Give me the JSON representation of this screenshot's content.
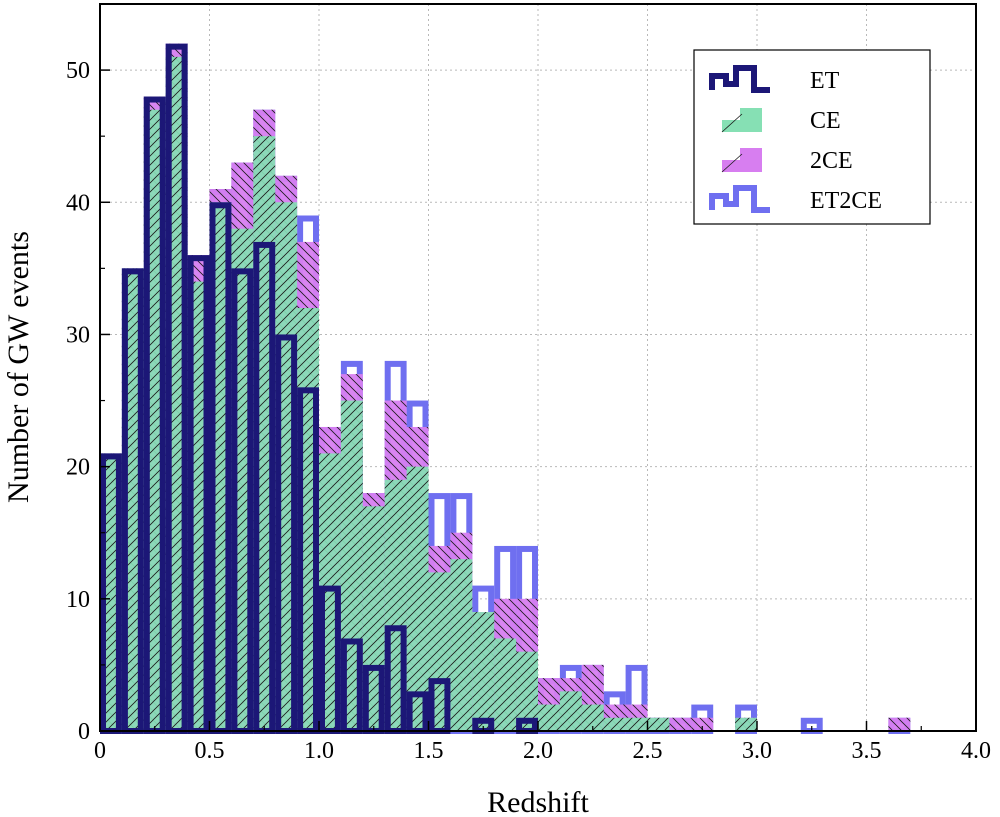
{
  "chart_data": {
    "type": "bar",
    "xlabel": "Redshift",
    "ylabel": "Number of GW events",
    "xlim": [
      0,
      4.0
    ],
    "ylim": [
      0,
      55
    ],
    "x_ticks": [
      "0",
      "0.5",
      "1.0",
      "1.5",
      "2.0",
      "2.5",
      "3.0",
      "3.5",
      "4.0"
    ],
    "y_ticks": [
      "0",
      "10",
      "20",
      "30",
      "40",
      "50"
    ],
    "grid": true,
    "legend_position": "top-right",
    "bin_width": 0.1,
    "bin_starts": [
      0.0,
      0.1,
      0.2,
      0.3,
      0.4,
      0.5,
      0.6,
      0.7,
      0.8,
      0.9,
      1.0,
      1.1,
      1.2,
      1.3,
      1.4,
      1.5,
      1.6,
      1.7,
      1.8,
      1.9,
      2.0,
      2.1,
      2.2,
      2.3,
      2.4,
      2.5,
      2.6,
      2.7,
      2.8,
      2.9,
      3.0,
      3.1,
      3.2,
      3.3,
      3.4,
      3.5,
      3.6,
      3.7,
      3.8,
      3.9
    ],
    "series": [
      {
        "name": "ET2CE",
        "color": "#6f6ff0",
        "style": "outline",
        "values": [
          21,
          35,
          48,
          52,
          36,
          41,
          43,
          47,
          42,
          39,
          23,
          28,
          18,
          28,
          25,
          18,
          18,
          11,
          14,
          14,
          4,
          5,
          5,
          3,
          5,
          1,
          1,
          2,
          0,
          2,
          0,
          0,
          1,
          0,
          0,
          0,
          1,
          0,
          0,
          0
        ]
      },
      {
        "name": "2CE",
        "color": "#d77ef0",
        "style": "hatched-fill",
        "values": [
          21,
          35,
          48,
          52,
          36,
          41,
          43,
          47,
          42,
          37,
          23,
          27,
          18,
          25,
          23,
          14,
          15,
          9,
          10,
          10,
          4,
          4,
          5,
          2,
          2,
          1,
          1,
          1,
          0,
          1,
          0,
          0,
          0,
          0,
          0,
          0,
          1,
          0,
          0,
          0
        ]
      },
      {
        "name": "CE",
        "color": "#86e0b4",
        "style": "hatched-fill",
        "values": [
          21,
          35,
          47,
          51,
          34,
          40,
          38,
          45,
          40,
          32,
          21,
          25,
          17,
          19,
          20,
          12,
          13,
          9,
          7,
          6,
          2,
          3,
          2,
          1,
          1,
          1,
          0,
          0,
          0,
          1,
          0,
          0,
          0,
          0,
          0,
          0,
          0,
          0,
          0,
          0
        ]
      },
      {
        "name": "ET",
        "color": "#1c1777",
        "style": "outline",
        "values": [
          21,
          35,
          48,
          52,
          36,
          40,
          35,
          37,
          30,
          26,
          11,
          7,
          5,
          8,
          3,
          4,
          0,
          1,
          0,
          1,
          0,
          0,
          0,
          0,
          0,
          0,
          0,
          0,
          0,
          0,
          0,
          0,
          0,
          0,
          0,
          0,
          0,
          0,
          0,
          0
        ]
      }
    ],
    "legend": [
      {
        "name": "ET",
        "color": "#1c1777",
        "style": "outline"
      },
      {
        "name": "CE",
        "color": "#86e0b4",
        "style": "hatched-fill"
      },
      {
        "name": "2CE",
        "color": "#d77ef0",
        "style": "hatched-fill"
      },
      {
        "name": "ET2CE",
        "color": "#6f6ff0",
        "style": "outline"
      }
    ]
  }
}
